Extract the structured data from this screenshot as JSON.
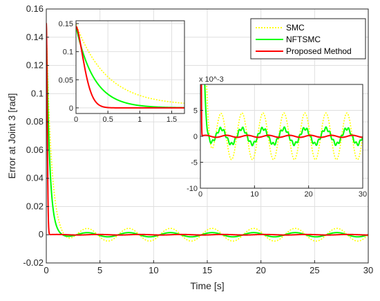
{
  "chart_data": [
    {
      "id": "main",
      "type": "line",
      "title": "",
      "xlabel": "Time [s]",
      "ylabel": "Error at Joint 3 [rad]",
      "xlim": [
        0,
        30
      ],
      "ylim": [
        -0.02,
        0.16
      ],
      "xticks": [
        0,
        5,
        10,
        15,
        20,
        25,
        30
      ],
      "yticks": [
        -0.02,
        0,
        0.02,
        0.04,
        0.06,
        0.08,
        0.1,
        0.12,
        0.14,
        0.16
      ],
      "ytick_labels": [
        "-0.02",
        "0",
        "0.02",
        "0.04",
        "0.06",
        "0.08",
        "0.1",
        "0.12",
        "0.14",
        "0.16"
      ],
      "grid": true,
      "legend_position": "top-right",
      "series": [
        {
          "name": "SMC",
          "color": "#FFFF00",
          "style": "dotted",
          "model": "smc"
        },
        {
          "name": "NFTSMC",
          "color": "#00FF00",
          "style": "solid",
          "model": "nftsmc"
        },
        {
          "name": "Proposed Method",
          "color": "#FF0000",
          "style": "solid",
          "model": "proposed"
        }
      ]
    },
    {
      "id": "inset_zoom_start",
      "type": "line",
      "xlim": [
        0,
        1.7
      ],
      "ylim": [
        -0.01,
        0.155
      ],
      "xticks": [
        0,
        0.5,
        1,
        1.5
      ],
      "xtick_labels": [
        "0",
        "0.5",
        "1",
        "1.5"
      ],
      "yticks": [
        0,
        0.05,
        0.1,
        0.15
      ],
      "ytick_labels": [
        "0",
        "0.05",
        "0.1",
        "0.15"
      ],
      "grid": true
    },
    {
      "id": "inset_steady_state",
      "type": "line",
      "xlim": [
        0,
        30
      ],
      "ylim": [
        -10,
        10
      ],
      "y_scale_exponent": "x 10^-3",
      "xticks": [
        0,
        10,
        20,
        30
      ],
      "xtick_labels": [
        "0",
        "10",
        "20",
        "30"
      ],
      "yticks": [
        -10,
        -5,
        0,
        5
      ],
      "ytick_labels": [
        "-10",
        "-5",
        "0",
        "5"
      ],
      "grid": true
    }
  ],
  "colors": {
    "smc": "#FFFF00",
    "nftsmc": "#00FF00",
    "proposed": "#FF0000",
    "grid": "#DFDFDF",
    "axis": "#262626"
  }
}
